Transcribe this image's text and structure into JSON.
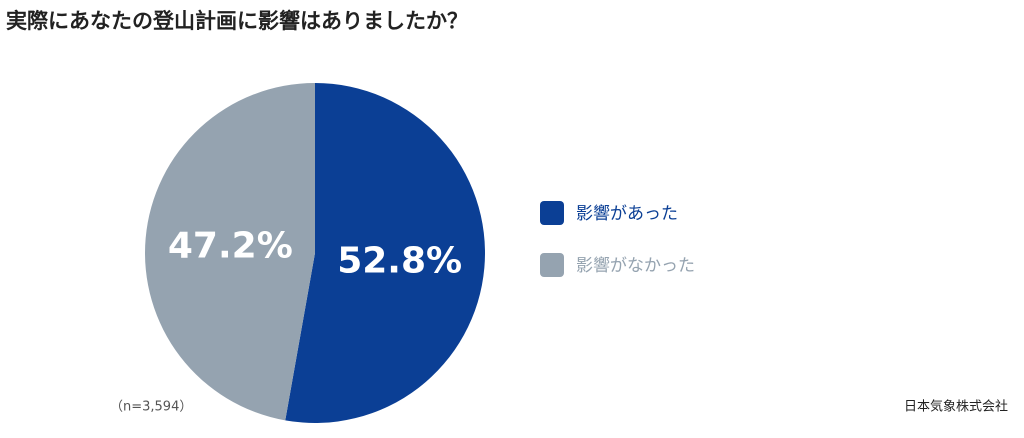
{
  "chart_data": {
    "type": "pie",
    "title": "実際にあなたの登山計画に影響はありましたか？",
    "categories": [
      "影響があった",
      "影響がなかった"
    ],
    "values": [
      52.8,
      47.2
    ],
    "value_labels": [
      "52.8%",
      "47.2%"
    ],
    "colors": [
      "#0b3f95",
      "#95a3b0"
    ],
    "legend": "right",
    "note": "（n=3,594）",
    "source": "日本気象株式会社"
  }
}
